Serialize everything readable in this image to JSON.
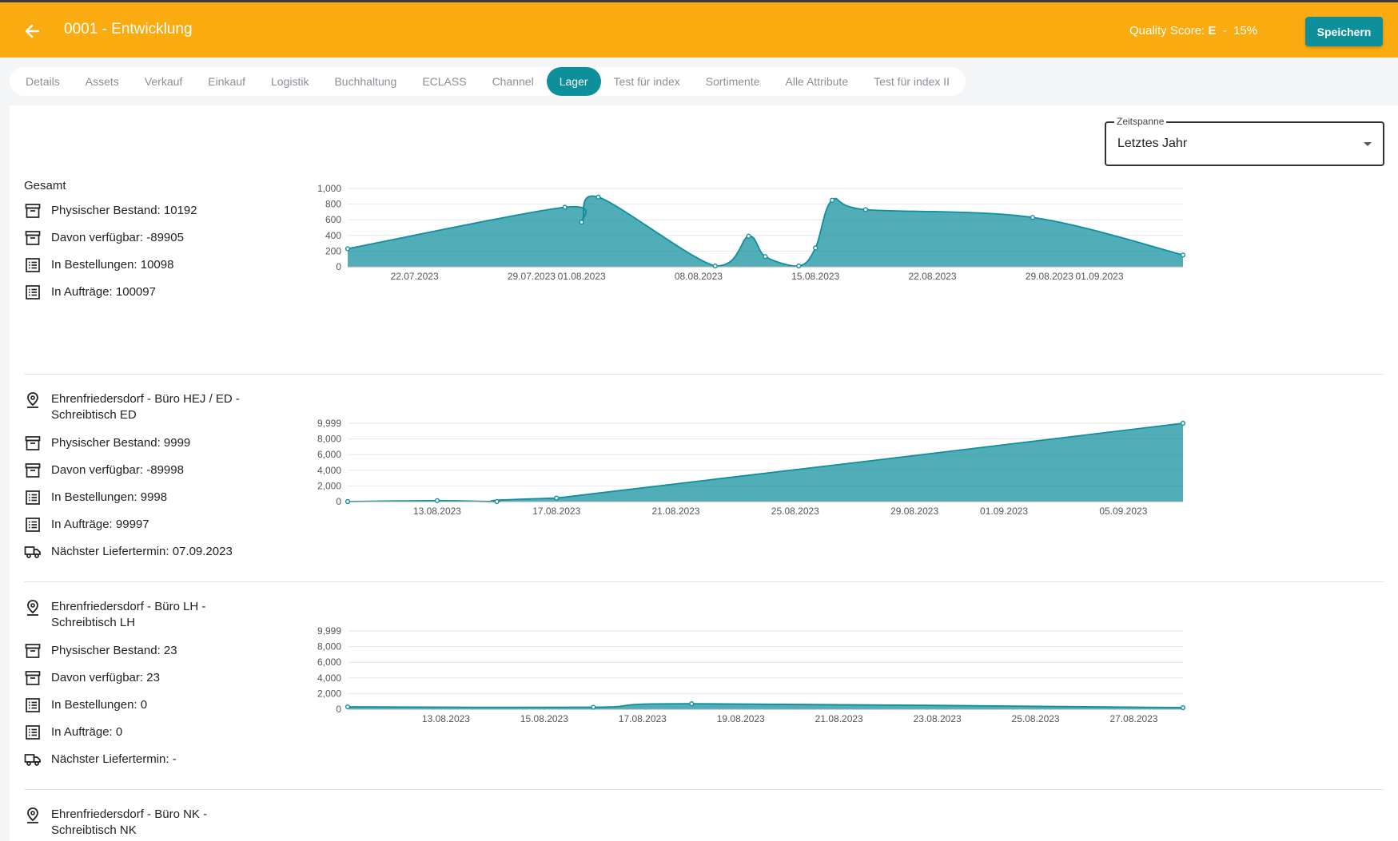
{
  "header": {
    "title": "0001 - Entwicklung",
    "quality_label": "Quality Score:",
    "quality_grade": "E",
    "quality_sep": "-",
    "quality_percent": "15%",
    "save_label": "Speichern",
    "accent": "#f9ab0f",
    "primary": "#0e8f9c"
  },
  "tabs": [
    {
      "label": "Details"
    },
    {
      "label": "Assets"
    },
    {
      "label": "Verkauf"
    },
    {
      "label": "Einkauf"
    },
    {
      "label": "Logistik"
    },
    {
      "label": "Buchhaltung"
    },
    {
      "label": "ECLASS"
    },
    {
      "label": "Channel"
    },
    {
      "label": "Lager"
    },
    {
      "label": "Test für index"
    },
    {
      "label": "Sortimente"
    },
    {
      "label": "Alle Attribute"
    },
    {
      "label": "Test für index II"
    }
  ],
  "active_tab": "Lager",
  "timespan": {
    "label": "Zeitspanne",
    "value": "Letztes Jahr"
  },
  "sections": [
    {
      "heading": "Gesamt",
      "rows": [
        {
          "icon": "archive-icon",
          "label": "Physischer Bestand: 10192"
        },
        {
          "icon": "archive-icon",
          "label": "Davon verfügbar: -89905"
        },
        {
          "icon": "list-icon",
          "label": "In Bestellungen: 10098"
        },
        {
          "icon": "list-icon",
          "label": "In Aufträge: 100097"
        }
      ]
    },
    {
      "location": "Ehrenfriedersdorf - Büro HEJ / ED - Schreibtisch ED",
      "rows": [
        {
          "icon": "archive-icon",
          "label": "Physischer Bestand: 9999"
        },
        {
          "icon": "archive-icon",
          "label": "Davon verfügbar: -89998"
        },
        {
          "icon": "list-icon",
          "label": "In Bestellungen: 9998"
        },
        {
          "icon": "list-icon",
          "label": "In Aufträge: 99997"
        },
        {
          "icon": "truck-icon",
          "label": "Nächster Liefertermin: 07.09.2023"
        }
      ]
    },
    {
      "location": "Ehrenfriedersdorf - Büro LH - Schreibtisch LH",
      "rows": [
        {
          "icon": "archive-icon",
          "label": "Physischer Bestand: 23"
        },
        {
          "icon": "archive-icon",
          "label": "Davon verfügbar: 23"
        },
        {
          "icon": "list-icon",
          "label": "In Bestellungen: 0"
        },
        {
          "icon": "list-icon",
          "label": "In Aufträge: 0"
        },
        {
          "icon": "truck-icon",
          "label": "Nächster Liefertermin: -"
        }
      ]
    },
    {
      "location": "Ehrenfriedersdorf - Büro NK - Schreibtisch NK",
      "rows": []
    }
  ],
  "chart_data": [
    {
      "type": "area",
      "color": "#0e8f9c",
      "ylim": [
        0,
        1000
      ],
      "yticks": [
        "0",
        "200",
        "400",
        "600",
        "800",
        "1,000"
      ],
      "ytick_values": [
        0,
        200,
        400,
        600,
        800,
        1000
      ],
      "xlim": [
        "2023-07-18",
        "2023-09-06"
      ],
      "xticks": [
        "22.07.2023",
        "29.07.2023",
        "01.08.2023",
        "08.08.2023",
        "15.08.2023",
        "22.08.2023",
        "29.08.2023",
        "01.09.2023"
      ],
      "xtick_dates": [
        "2023-07-22",
        "2023-07-29",
        "2023-08-01",
        "2023-08-08",
        "2023-08-15",
        "2023-08-22",
        "2023-08-29",
        "2023-09-01"
      ],
      "points": [
        {
          "x": "2023-07-18",
          "y": 230
        },
        {
          "x": "2023-07-31",
          "y": 760
        },
        {
          "x": "2023-08-01",
          "y": 570
        },
        {
          "x": "2023-08-02",
          "y": 890
        },
        {
          "x": "2023-08-09",
          "y": 10
        },
        {
          "x": "2023-08-11",
          "y": 390
        },
        {
          "x": "2023-08-12",
          "y": 130
        },
        {
          "x": "2023-08-14",
          "y": 10
        },
        {
          "x": "2023-08-15",
          "y": 240
        },
        {
          "x": "2023-08-16",
          "y": 850
        },
        {
          "x": "2023-08-18",
          "y": 730
        },
        {
          "x": "2023-08-28",
          "y": 630
        },
        {
          "x": "2023-09-06",
          "y": 150
        }
      ]
    },
    {
      "type": "area",
      "color": "#0e8f9c",
      "ylim": [
        0,
        9999
      ],
      "yticks": [
        "0",
        "2,000",
        "4,000",
        "6,000",
        "8,000",
        "9,999"
      ],
      "ytick_values": [
        0,
        2000,
        4000,
        6000,
        8000,
        9999
      ],
      "xlim": [
        "2023-08-10",
        "2023-09-07"
      ],
      "xticks": [
        "13.08.2023",
        "17.08.2023",
        "21.08.2023",
        "25.08.2023",
        "29.08.2023",
        "01.09.2023",
        "05.09.2023"
      ],
      "xtick_dates": [
        "2023-08-13",
        "2023-08-17",
        "2023-08-21",
        "2023-08-25",
        "2023-08-29",
        "2023-09-01",
        "2023-09-05"
      ],
      "points": [
        {
          "x": "2023-08-10",
          "y": 0
        },
        {
          "x": "2023-08-13",
          "y": 120
        },
        {
          "x": "2023-08-15",
          "y": 0
        },
        {
          "x": "2023-08-17",
          "y": 450
        },
        {
          "x": "2023-09-07",
          "y": 9999
        }
      ]
    },
    {
      "type": "area",
      "color": "#0e8f9c",
      "ylim": [
        0,
        9999
      ],
      "yticks": [
        "0",
        "2,000",
        "4,000",
        "6,000",
        "8,000",
        "9,999"
      ],
      "ytick_values": [
        0,
        2000,
        4000,
        6000,
        8000,
        9999
      ],
      "xlim": [
        "2023-08-11",
        "2023-08-28"
      ],
      "xticks": [
        "13.08.2023",
        "15.08.2023",
        "17.08.2023",
        "19.08.2023",
        "21.08.2023",
        "23.08.2023",
        "25.08.2023",
        "27.08.2023"
      ],
      "xtick_dates": [
        "2023-08-13",
        "2023-08-15",
        "2023-08-17",
        "2023-08-19",
        "2023-08-21",
        "2023-08-23",
        "2023-08-25",
        "2023-08-27"
      ],
      "points": [
        {
          "x": "2023-08-11",
          "y": 300
        },
        {
          "x": "2023-08-16",
          "y": 250
        },
        {
          "x": "2023-08-18",
          "y": 700
        },
        {
          "x": "2023-08-28",
          "y": 200
        }
      ]
    }
  ]
}
